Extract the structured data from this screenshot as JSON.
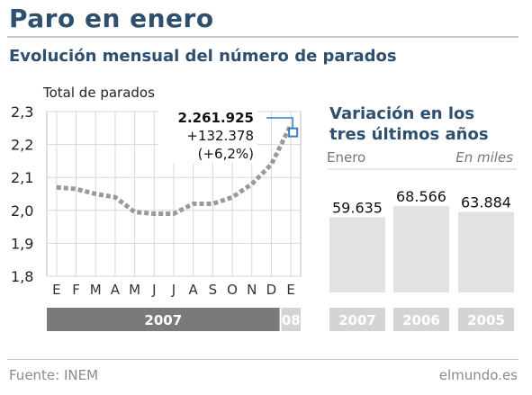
{
  "header": {
    "title": "Paro en enero",
    "subtitle": "Evolución mensual del número de parados"
  },
  "footer": {
    "source": "Fuente: INEM",
    "brand": "elmundo.es"
  },
  "colors": {
    "title": "#2f4f6f",
    "line": "#9a9a9a",
    "bars": "#e2e2e2",
    "year_bar": "#7a7a7a",
    "year_bar_light": "#d4d4d4",
    "grid": "#d8d8d8",
    "marker": "#3a7fb5"
  },
  "chart_data": [
    {
      "type": "line",
      "title": "Total de parados",
      "xlabel": "",
      "ylabel": "",
      "x": [
        "E",
        "F",
        "M",
        "A",
        "M",
        "J",
        "J",
        "A",
        "S",
        "O",
        "N",
        "D",
        "E"
      ],
      "values": [
        2.07,
        2.065,
        2.05,
        2.04,
        1.995,
        1.99,
        1.99,
        2.02,
        2.02,
        2.04,
        2.08,
        2.14,
        2.26
      ],
      "yticks": [
        "2,3",
        "2,2",
        "2,1",
        "2,0",
        "1,9",
        "1,8"
      ],
      "ylim": [
        1.8,
        2.3
      ],
      "year_labels": [
        "2007",
        "08"
      ],
      "annotation": [
        "2.261.925",
        "+132.378",
        "(+6,2%)"
      ],
      "grid": true
    },
    {
      "type": "bar",
      "title": "Variación en los tres últimos años",
      "left_note": "Enero",
      "unit_note": "En miles",
      "categories": [
        "2007",
        "2006",
        "2005"
      ],
      "values": [
        59.635,
        68.566,
        63.884
      ],
      "value_labels": [
        "59.635",
        "68.566",
        "63.884"
      ]
    }
  ]
}
